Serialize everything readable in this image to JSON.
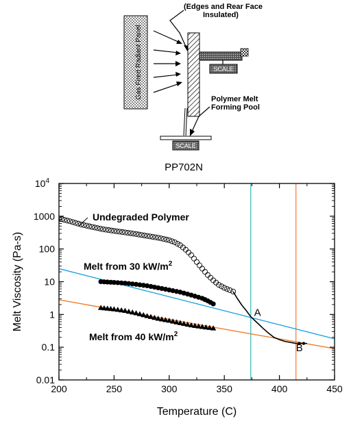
{
  "schematic": {
    "insulation_note": "(Edges and Rear Face Insulated)",
    "panel_label": "Gas Fired Radiant Panel",
    "scale_label": "SCALE",
    "melt_pool_label_1": "Polymer Melt",
    "melt_pool_label_2": "Forming Pool"
  },
  "chart_data": {
    "type": "scatter",
    "title": "PP702N",
    "xlabel": "Temperature (C)",
    "ylabel": "Melt Viscosity (Pa-s)",
    "xlim": [
      200,
      450
    ],
    "ylim": [
      0.01,
      10000
    ],
    "yscale": "log",
    "grid": false,
    "x_ticks": [
      "200",
      "250",
      "300",
      "350",
      "400",
      "450"
    ],
    "y_ticks": [
      {
        "value": 0.01,
        "label": "0.01"
      },
      {
        "value": 0.1,
        "label": "0.1"
      },
      {
        "value": 1,
        "label": "1"
      },
      {
        "value": 10,
        "label": "10"
      },
      {
        "value": 100,
        "label": "100"
      },
      {
        "value": 1000,
        "label": "1000"
      },
      {
        "value": 10000,
        "label": "10",
        "exp": "4"
      }
    ],
    "series": [
      {
        "name": "Undegraded Polymer",
        "marker": "open-circle",
        "color": "#000000",
        "label_exp": "",
        "points": [
          [
            200,
            850
          ],
          [
            210,
            700
          ],
          [
            220,
            560
          ],
          [
            230,
            470
          ],
          [
            240,
            400
          ],
          [
            250,
            355
          ],
          [
            260,
            320
          ],
          [
            270,
            285
          ],
          [
            280,
            250
          ],
          [
            290,
            220
          ],
          [
            300,
            185
          ],
          [
            305,
            160
          ],
          [
            310,
            130
          ],
          [
            315,
            95
          ],
          [
            320,
            65
          ],
          [
            325,
            40
          ],
          [
            330,
            25
          ],
          [
            335,
            16
          ],
          [
            340,
            11
          ],
          [
            345,
            8
          ],
          [
            350,
            6.5
          ],
          [
            355,
            5.5
          ],
          [
            358,
            5
          ]
        ]
      },
      {
        "name": "Melt from 30 kW/m",
        "marker": "filled-circle",
        "color": "#000000",
        "label_exp": "2",
        "points": [
          [
            238,
            10
          ],
          [
            250,
            9.5
          ],
          [
            260,
            9
          ],
          [
            270,
            8.3
          ],
          [
            280,
            7.5
          ],
          [
            290,
            6.5
          ],
          [
            300,
            5.6
          ],
          [
            310,
            4.8
          ],
          [
            320,
            3.9
          ],
          [
            330,
            3.1
          ],
          [
            335,
            2.6
          ],
          [
            340,
            2.1
          ]
        ]
      },
      {
        "name": "Melt from 40 kW/m",
        "marker": "filled-triangle",
        "color": "#000000",
        "label_exp": "2",
        "points": [
          [
            238,
            1.6
          ],
          [
            250,
            1.45
          ],
          [
            260,
            1.3
          ],
          [
            270,
            1.1
          ],
          [
            280,
            0.9
          ],
          [
            290,
            0.75
          ],
          [
            300,
            0.65
          ],
          [
            310,
            0.55
          ],
          [
            320,
            0.47
          ],
          [
            330,
            0.42
          ],
          [
            340,
            0.38
          ]
        ]
      }
    ],
    "curve": {
      "color": "#000000",
      "points": [
        [
          358,
          5
        ],
        [
          362,
          3
        ],
        [
          366,
          1.9
        ],
        [
          370,
          1.3
        ],
        [
          374,
          0.85
        ],
        [
          380,
          0.55
        ],
        [
          385,
          0.38
        ],
        [
          390,
          0.27
        ],
        [
          395,
          0.2
        ],
        [
          400,
          0.17
        ],
        [
          405,
          0.15
        ],
        [
          410,
          0.14
        ],
        [
          415,
          0.13
        ],
        [
          425,
          0.13
        ]
      ],
      "end_markers": [
        [
          418,
          0.13
        ],
        [
          422,
          0.13
        ]
      ]
    },
    "trend_lines": [
      {
        "color": "#1aa3e0",
        "from": [
          200,
          25
        ],
        "to": [
          450,
          0.18
        ]
      },
      {
        "color": "#f07a2a",
        "from": [
          200,
          2.8
        ],
        "to": [
          450,
          0.09
        ]
      }
    ],
    "vertical_lines": [
      {
        "x": 374,
        "color": "#28b7b7"
      },
      {
        "x": 415,
        "color": "#f07a2a"
      }
    ],
    "annotations": [
      {
        "text": "A",
        "x": 377,
        "y": 0.9
      },
      {
        "text": "B",
        "x": 415,
        "y": 0.075
      }
    ]
  }
}
